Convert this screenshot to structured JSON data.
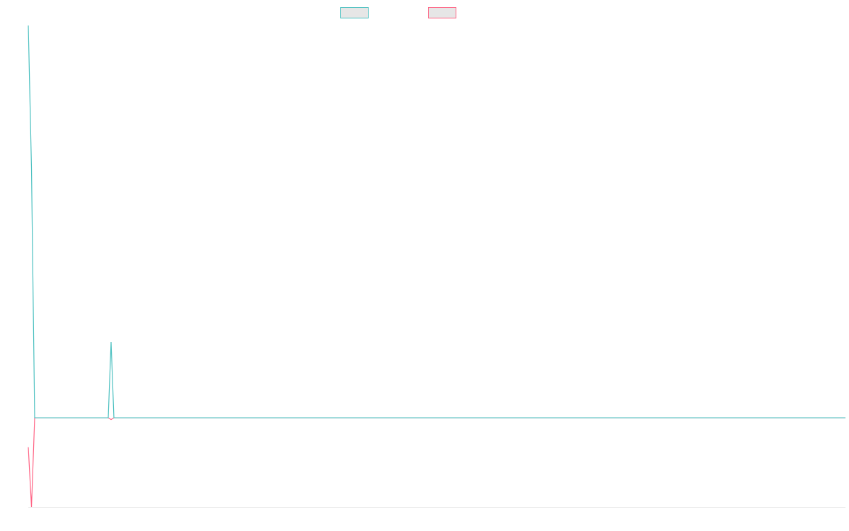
{
  "colors": {
    "series_a": "#4bc0c0",
    "series_b": "#ff6384",
    "legend_fill": "#e6e6e6",
    "axis": "#e6e6e6",
    "background": "#ffffff"
  },
  "chart_data": {
    "type": "line",
    "title": "",
    "xlabel": "",
    "ylabel": "",
    "grid": false,
    "legend_placement": "top",
    "ylim": [
      -1.0,
      4.4
    ],
    "xlim": [
      0,
      261
    ],
    "series": [
      {
        "color": "#4bc0c0",
        "points": [
          [
            0,
            4.4
          ],
          [
            1,
            2.8
          ],
          [
            2,
            0.0
          ],
          [
            3,
            0.0
          ],
          [
            10,
            0.0
          ],
          [
            20,
            0.0
          ],
          [
            25,
            0.0
          ],
          [
            26,
            0.85
          ],
          [
            27,
            0.0
          ],
          [
            28,
            0.0
          ],
          [
            50,
            0.0
          ],
          [
            100,
            0.0
          ],
          [
            150,
            0.0
          ],
          [
            200,
            0.0
          ],
          [
            261,
            0.0
          ]
        ]
      },
      {
        "color": "#ff6384",
        "points": [
          [
            0,
            -0.33
          ],
          [
            1,
            -1.0
          ],
          [
            2,
            0.0
          ],
          [
            3,
            0.0
          ],
          [
            10,
            0.0
          ],
          [
            20,
            0.0
          ],
          [
            25,
            0.0
          ],
          [
            26,
            -0.02
          ],
          [
            27,
            0.0
          ],
          [
            28,
            0.0
          ],
          [
            50,
            0.0
          ],
          [
            100,
            0.0
          ],
          [
            150,
            0.0
          ],
          [
            200,
            0.0
          ],
          [
            261,
            0.0
          ]
        ]
      }
    ]
  }
}
